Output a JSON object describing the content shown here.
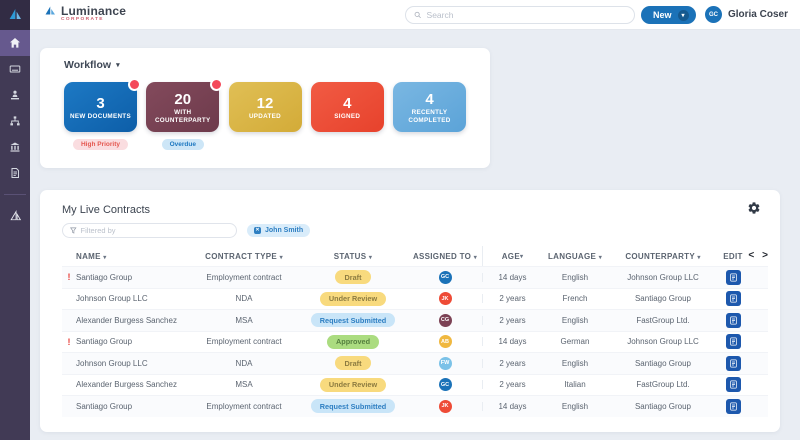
{
  "brand": {
    "name": "Luminance",
    "subtitle": "CORPORATE"
  },
  "topbar": {
    "search_placeholder": "Search",
    "new_button_label": "New",
    "user_initials": "GC",
    "user_name": "Gloria Coser",
    "accent_color": "#1b72b8"
  },
  "sidebar": {
    "icons": [
      "home-icon",
      "inbox-icon",
      "upload-user-icon",
      "sitemap-icon",
      "bank-icon",
      "document-icon",
      "sail-icon"
    ],
    "active_item": "home"
  },
  "workflow": {
    "title": "Workflow",
    "cards": [
      {
        "count": "3",
        "label": "New Documents",
        "color_from": "#1d79c4",
        "color_to": "#0d5ea8",
        "notification_dot": true,
        "badge": {
          "text": "High Priority",
          "bg": "#fadde0",
          "color": "#e4574f"
        }
      },
      {
        "count": "20",
        "label": "With Counterparty",
        "color_from": "#834a5c",
        "color_to": "#6d3a4b",
        "notification_dot": true,
        "badge": {
          "text": "Overdue",
          "bg": "#cde6f7",
          "color": "#1e78c0"
        }
      },
      {
        "count": "12",
        "label": "Updated",
        "color_from": "#e0bf55",
        "color_to": "#d3ab38",
        "notification_dot": false,
        "badge": null
      },
      {
        "count": "4",
        "label": "Signed",
        "color_from": "#f15b44",
        "color_to": "#e7422c",
        "notification_dot": false,
        "badge": null
      },
      {
        "count": "4",
        "label": "Recently Completed",
        "color_from": "#7ab7e2",
        "color_to": "#5ba3d8",
        "notification_dot": false,
        "badge": null
      }
    ]
  },
  "contracts": {
    "title": "My Live Contracts",
    "filter_placeholder": "Filtered by",
    "filter_chip_label": "John Smith",
    "columns": [
      {
        "label": "NAME",
        "sortable": true
      },
      {
        "label": "CONTRACT TYPE",
        "sortable": true
      },
      {
        "label": "STATUS",
        "sortable": true
      },
      {
        "label": "ASSIGNED TO",
        "sortable": true
      },
      {
        "label": "AGE",
        "sortable": true
      },
      {
        "label": "LANGUAGE",
        "sortable": true
      },
      {
        "label": "COUNTERPARTY",
        "sortable": true
      },
      {
        "label": "EDIT",
        "sortable": false
      }
    ],
    "status_styles": {
      "draft": {
        "bg": "#f8da7e",
        "text": "#8c7b40"
      },
      "review": {
        "bg": "#f8da7e",
        "text": "#8c7b40"
      },
      "submitted": {
        "bg": "#c9e5f8",
        "text": "#2e7fc2"
      },
      "approved": {
        "bg": "#abdc80",
        "text": "#55803f"
      }
    },
    "rows": [
      {
        "alert": true,
        "name": "Santiago Group",
        "type": "Employment contract",
        "status": "Draft",
        "status_kind": "draft",
        "assignee_initials": "GC",
        "assignee_color": "#1b72b8",
        "age": "14 days",
        "language": "English",
        "counterparty": "Johnson Group LLC"
      },
      {
        "alert": false,
        "name": "Johnson Group LLC",
        "type": "NDA",
        "status": "Under Review",
        "status_kind": "review",
        "assignee_initials": "JK",
        "assignee_color": "#ee4b36",
        "age": "2 years",
        "language": "French",
        "counterparty": "Santiago Group"
      },
      {
        "alert": false,
        "name": "Alexander Burgess Sanchez",
        "type": "MSA",
        "status": "Request Submitted",
        "status_kind": "submitted",
        "assignee_initials": "CG",
        "assignee_color": "#7c4255",
        "age": "2 years",
        "language": "English",
        "counterparty": "FastGroup Ltd."
      },
      {
        "alert": true,
        "name": "Santiago Group",
        "type": "Employment contract",
        "status": "Approved",
        "status_kind": "approved",
        "assignee_initials": "AB",
        "assignee_color": "#f0b840",
        "age": "14 days",
        "language": "German",
        "counterparty": "Johnson Group LLC"
      },
      {
        "alert": false,
        "name": "Johnson Group LLC",
        "type": "NDA",
        "status": "Draft",
        "status_kind": "draft",
        "assignee_initials": "FW",
        "assignee_color": "#7bc2e8",
        "age": "2 years",
        "language": "English",
        "counterparty": "Santiago Group"
      },
      {
        "alert": false,
        "name": "Alexander Burgess Sanchez",
        "type": "MSA",
        "status": "Under Review",
        "status_kind": "review",
        "assignee_initials": "GC",
        "assignee_color": "#1b72b8",
        "age": "2 years",
        "language": "Italian",
        "counterparty": "FastGroup Ltd."
      },
      {
        "alert": false,
        "name": "Santiago Group",
        "type": "Employment contract",
        "status": "Request Submitted",
        "status_kind": "submitted",
        "assignee_initials": "JK",
        "assignee_color": "#ee4b36",
        "age": "14 days",
        "language": "English",
        "counterparty": "Santiago Group"
      }
    ]
  }
}
